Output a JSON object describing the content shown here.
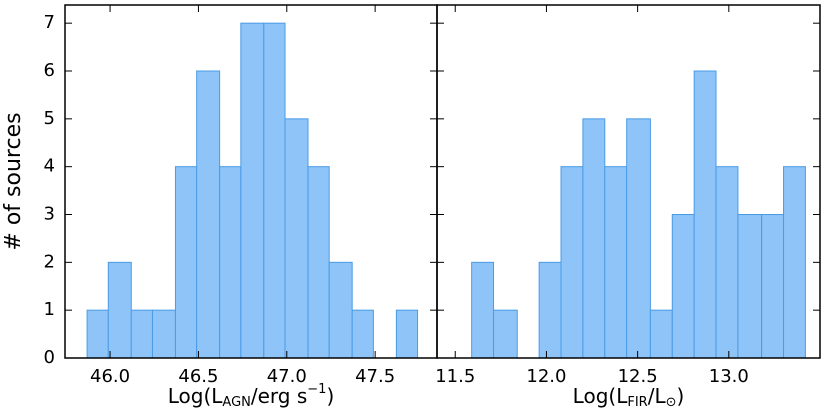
{
  "chart_data": [
    {
      "type": "histogram",
      "xlabel": [
        "Log(L",
        "AGN",
        "/erg s",
        "−1",
        ")"
      ],
      "ylabel": "# of sources",
      "bins": [
        45.87,
        45.99,
        46.12,
        46.24,
        46.37,
        46.49,
        46.62,
        46.74,
        46.87,
        46.99,
        47.12,
        47.24,
        47.37,
        47.49,
        47.62,
        47.74
      ],
      "values": [
        1,
        2,
        1,
        1,
        4,
        6,
        4,
        7,
        7,
        5,
        4,
        2,
        1,
        0,
        1
      ],
      "color": "#8ec4f8",
      "edgecolor": "#4a9be6",
      "xlim": [
        45.745,
        47.85
      ],
      "xticks": [
        {
          "value": 46,
          "label": "46.0"
        },
        46.5,
        {
          "value": 47,
          "label": "47.0"
        },
        47.5
      ],
      "ylim": [
        0,
        7.38
      ],
      "yticks": [
        0,
        1,
        2,
        3,
        4,
        5,
        6,
        7
      ]
    },
    {
      "type": "histogram",
      "xlabel": [
        "Log(L",
        "FIR",
        "/L",
        "⊙",
        ")"
      ],
      "bins": [
        11.59,
        11.71,
        11.84,
        11.96,
        12.08,
        12.2,
        12.32,
        12.44,
        12.57,
        12.69,
        12.81,
        12.93,
        13.05,
        13.18,
        13.3,
        13.42
      ],
      "values": [
        2,
        1,
        0,
        2,
        4,
        5,
        4,
        5,
        1,
        3,
        6,
        4,
        3,
        3,
        4
      ],
      "color": "#8ec4f8",
      "edgecolor": "#4a9be6",
      "xlim": [
        11.4,
        13.5
      ],
      "xticks": [
        11.5,
        {
          "value": 12,
          "label": "12.0"
        },
        12.5,
        {
          "value": 13,
          "label": "13.0"
        }
      ],
      "ylim": [
        0,
        7.38
      ],
      "yticks": [
        0,
        1,
        2,
        3,
        4,
        5,
        6,
        7
      ]
    }
  ]
}
